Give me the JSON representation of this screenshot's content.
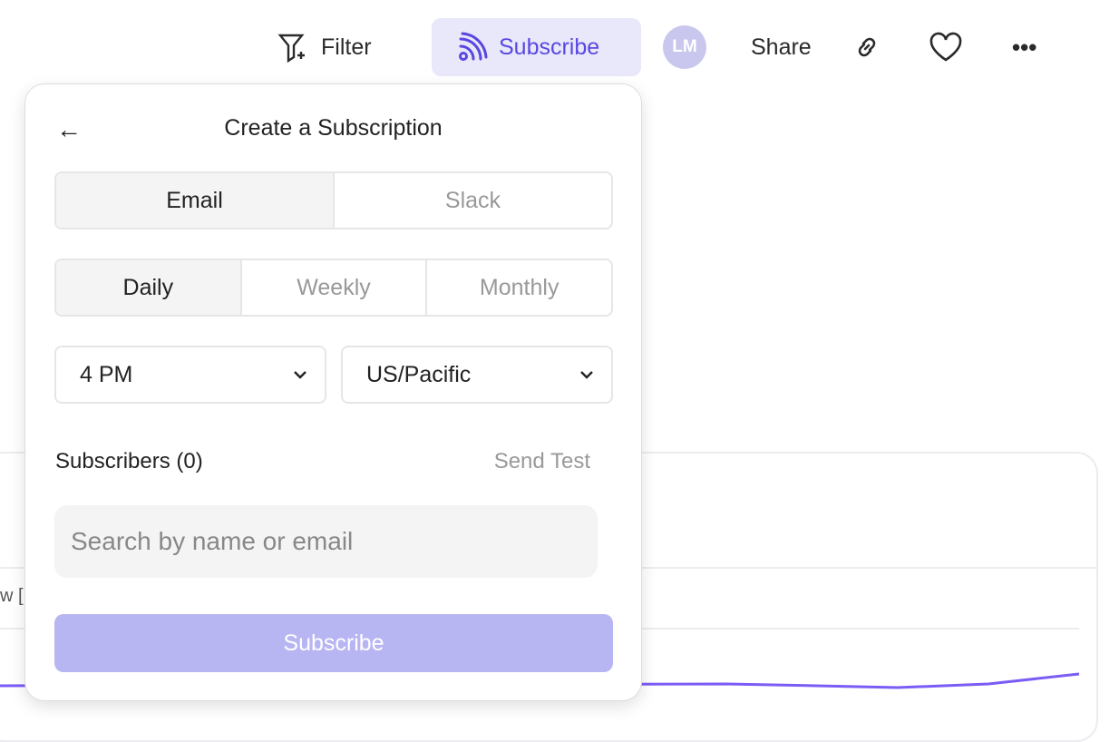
{
  "toolbar": {
    "filter": "Filter",
    "subscribe": "Subscribe",
    "avatar": "LM",
    "share": "Share"
  },
  "background": {
    "axis_label": "w ["
  },
  "popover": {
    "title": "Create a Subscription",
    "channels": [
      "Email",
      "Slack"
    ],
    "active_channel": "Email",
    "frequencies": [
      "Daily",
      "Weekly",
      "Monthly"
    ],
    "active_frequency": "Daily",
    "time": "4 PM",
    "timezone": "US/Pacific",
    "subscribers_label": "Subscribers (0)",
    "send_test": "Send Test",
    "search_placeholder": "Search by name or email",
    "submit": "Subscribe"
  },
  "colors": {
    "accent": "#5a47e0",
    "accent_light": "#e8e8fa",
    "button_disabled": "#b8b5f3",
    "line": "#7b5cf5"
  }
}
